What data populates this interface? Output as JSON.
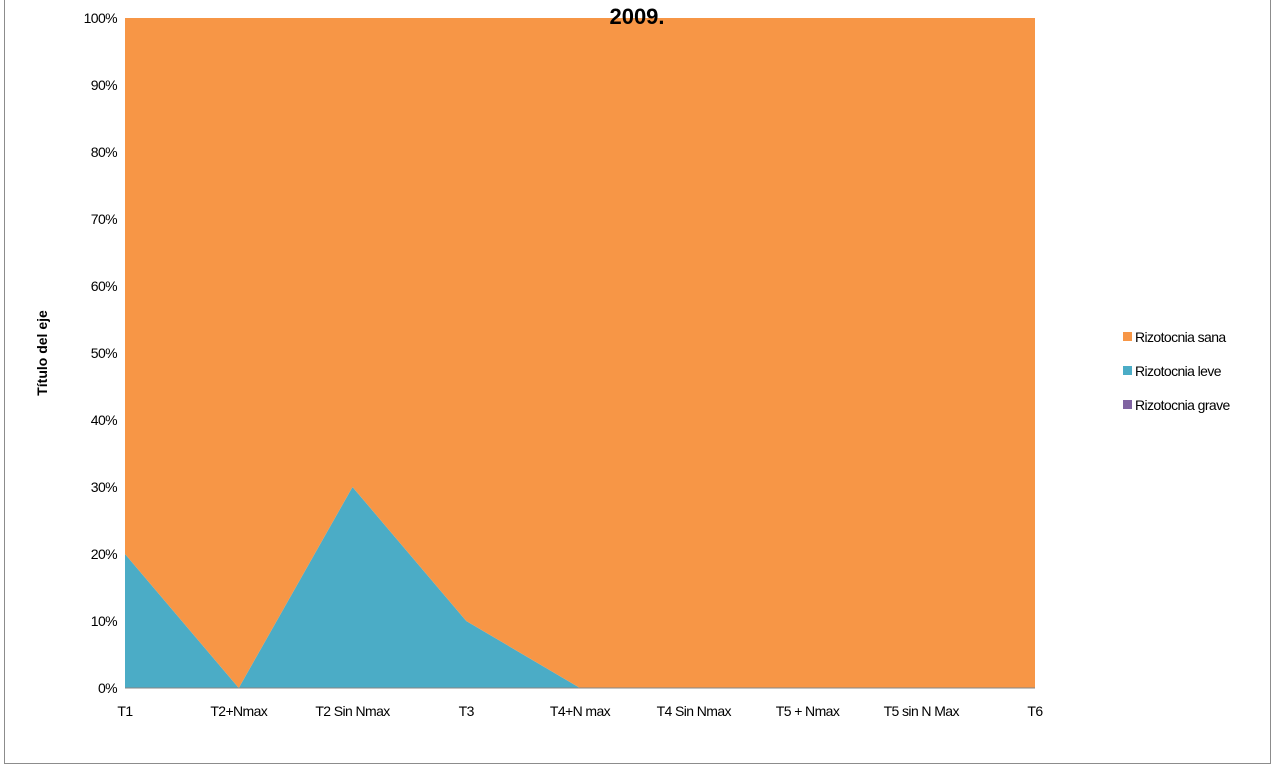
{
  "chart_data": {
    "type": "area",
    "stacked": "percent",
    "title": "2009.",
    "ylabel": "Título del eje",
    "xlabel": "",
    "categories": [
      "T1",
      "T2+Nmax",
      "T2 Sin Nmax",
      "T3",
      "T4+N max",
      "T4 Sin Nmax",
      "T5 + Nmax",
      "T5 sin N Max",
      "T6"
    ],
    "yticks": [
      "0%",
      "10%",
      "20%",
      "30%",
      "40%",
      "50%",
      "60%",
      "70%",
      "80%",
      "90%",
      "100%"
    ],
    "ylim": [
      0,
      100
    ],
    "grid": false,
    "legend_position": "right",
    "series": [
      {
        "name": "Rizotocnia grave",
        "color": "#8064a2",
        "values": [
          0,
          0,
          0,
          0,
          0,
          0,
          0,
          0,
          0
        ]
      },
      {
        "name": "Rizotocnia leve",
        "color": "#4bacc6",
        "values": [
          20,
          0,
          30,
          10,
          0,
          0,
          0,
          0,
          0
        ]
      },
      {
        "name": "Rizotocnia sana",
        "color": "#f79646",
        "values": [
          80,
          100,
          70,
          90,
          100,
          100,
          100,
          100,
          100
        ]
      }
    ],
    "legend_order": [
      "Rizotocnia sana",
      "Rizotocnia leve",
      "Rizotocnia grave"
    ]
  }
}
